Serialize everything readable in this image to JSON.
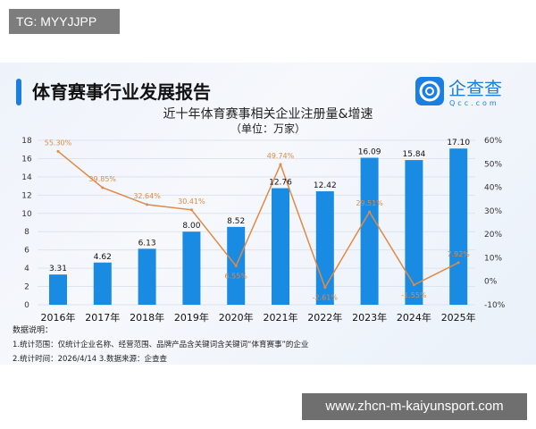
{
  "watermark_top": "TG: MYYJJPP",
  "watermark_bottom": "www.zhcn-m-kaiyunsport.com",
  "report_title": "体育赛事行业发展报告",
  "logo": {
    "name": "企查查",
    "domain": "Qcc.com"
  },
  "notes": {
    "heading": "数据说明：",
    "line1": "1.统计范围：仅统计企业名称、经营范围、品牌产品含关键词含关键词“体育赛事”的企业",
    "line2": "2.统计时间：2026/4/14  3.数据来源：企查查"
  },
  "colors": {
    "bar": "#1a8be3",
    "line": "#e08a44",
    "title_accent": "#1a7fe0"
  },
  "chart_data": {
    "type": "bar",
    "title": "近十年体育赛事相关企业注册量&增速",
    "subtitle": "（单位：万家）",
    "categories": [
      "2016年",
      "2017年",
      "2018年",
      "2019年",
      "2020年",
      "2021年",
      "2022年",
      "2023年",
      "2024年",
      "2025年"
    ],
    "series": [
      {
        "name": "注册量",
        "type": "bar",
        "axis": "left",
        "values": [
          3.31,
          4.62,
          6.13,
          8.0,
          8.52,
          12.76,
          12.42,
          16.09,
          15.84,
          17.1
        ],
        "labels": [
          "3.31",
          "4.62",
          "6.13",
          "8.00",
          "8.52",
          "12.76",
          "12.42",
          "16.09",
          "15.84",
          "17.10"
        ]
      },
      {
        "name": "增速",
        "type": "line",
        "axis": "right",
        "values": [
          55.3,
          39.85,
          32.64,
          30.41,
          6.55,
          49.74,
          -2.61,
          29.51,
          -1.55,
          7.92
        ],
        "labels": [
          "55.30%",
          "39.85%",
          "32.64%",
          "30.41%",
          "6.55%",
          "49.74%",
          "-2.61%",
          "29.51%",
          "-1.55%",
          "7.92%"
        ]
      }
    ],
    "y_left": {
      "ylim": [
        0,
        18
      ],
      "ticks": [
        "0",
        "2",
        "4",
        "6",
        "8",
        "10",
        "12",
        "14",
        "16",
        "18"
      ]
    },
    "y_right": {
      "ylim": [
        -10,
        60
      ],
      "ticks": [
        "-10%",
        "0%",
        "10%",
        "20%",
        "30%",
        "40%",
        "50%",
        "60%"
      ]
    },
    "grid": true
  }
}
